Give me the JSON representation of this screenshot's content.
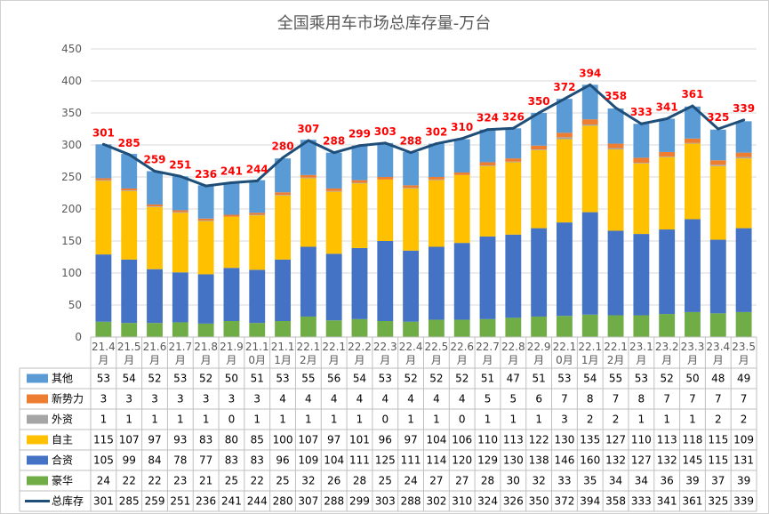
{
  "chart_data": {
    "type": "bar",
    "stacked": true,
    "title": "全国乘用车市场总库存量-万台",
    "categories": [
      [
        "21.4",
        "月"
      ],
      [
        "21.5",
        "月"
      ],
      [
        "21.6",
        "月"
      ],
      [
        "21.7",
        "月"
      ],
      [
        "21.8",
        "月"
      ],
      [
        "21.9",
        "月"
      ],
      [
        "21.1",
        "0月"
      ],
      [
        "21.1",
        "1月"
      ],
      [
        "22.1",
        "2月"
      ],
      [
        "22.1",
        "月"
      ],
      [
        "22.2",
        "月"
      ],
      [
        "22.3",
        "月"
      ],
      [
        "22.4",
        "月"
      ],
      [
        "22.5",
        "月"
      ],
      [
        "22.6",
        "月"
      ],
      [
        "22.7",
        "月"
      ],
      [
        "22.8",
        "月"
      ],
      [
        "22.9",
        "月"
      ],
      [
        "22.1",
        "0月"
      ],
      [
        "22.1",
        "1月"
      ],
      [
        "22.1",
        "2月"
      ],
      [
        "23.1",
        "月"
      ],
      [
        "23.2",
        "月"
      ],
      [
        "23.3",
        "月"
      ],
      [
        "23.4",
        "月"
      ],
      [
        "23.5",
        "月"
      ]
    ],
    "ylim": [
      0,
      450
    ],
    "yticks": [
      0,
      50,
      100,
      150,
      200,
      250,
      300,
      350,
      400,
      450
    ],
    "grid": true,
    "series": [
      {
        "name": "豪华",
        "color": "#70ad47",
        "values": [
          24,
          22,
          22,
          23,
          21,
          25,
          22,
          25,
          32,
          26,
          28,
          25,
          24,
          27,
          27,
          28,
          30,
          32,
          33,
          35,
          34,
          34,
          36,
          39,
          37,
          39
        ]
      },
      {
        "name": "合资",
        "color": "#4472c4",
        "values": [
          105,
          99,
          84,
          78,
          77,
          83,
          83,
          96,
          109,
          104,
          111,
          125,
          111,
          114,
          120,
          129,
          130,
          138,
          146,
          160,
          132,
          127,
          132,
          145,
          115,
          131
        ]
      },
      {
        "name": "自主",
        "color": "#ffc000",
        "values": [
          115,
          107,
          97,
          93,
          83,
          80,
          85,
          100,
          107,
          97,
          101,
          96,
          97,
          104,
          106,
          110,
          113,
          122,
          130,
          135,
          127,
          110,
          113,
          118,
          115,
          109
        ]
      },
      {
        "name": "外资",
        "color": "#a5a5a5",
        "values": [
          1,
          1,
          1,
          1,
          1,
          0,
          1,
          1,
          1,
          1,
          1,
          0,
          1,
          1,
          0,
          1,
          1,
          1,
          3,
          2,
          2,
          1,
          1,
          1,
          2,
          2
        ]
      },
      {
        "name": "新势力",
        "color": "#ed7d31",
        "values": [
          3,
          3,
          3,
          3,
          3,
          3,
          3,
          4,
          4,
          4,
          4,
          4,
          4,
          4,
          4,
          5,
          5,
          6,
          7,
          8,
          7,
          8,
          7,
          7,
          7,
          7
        ]
      },
      {
        "name": "其他",
        "color": "#5b9bd5",
        "values": [
          53,
          54,
          52,
          53,
          52,
          50,
          51,
          53,
          55,
          56,
          54,
          53,
          52,
          52,
          52,
          51,
          47,
          51,
          53,
          54,
          55,
          53,
          52,
          50,
          48,
          49
        ]
      }
    ],
    "line": {
      "name": "总库存",
      "color": "#1f4e79",
      "values": [
        301,
        285,
        259,
        251,
        236,
        241,
        244,
        280,
        307,
        288,
        299,
        303,
        288,
        302,
        310,
        324,
        326,
        350,
        372,
        394,
        358,
        333,
        341,
        361,
        325,
        339
      ]
    },
    "table_rows": [
      "其他",
      "新势力",
      "外资",
      "自主",
      "合资",
      "豪华",
      "总库存"
    ]
  }
}
